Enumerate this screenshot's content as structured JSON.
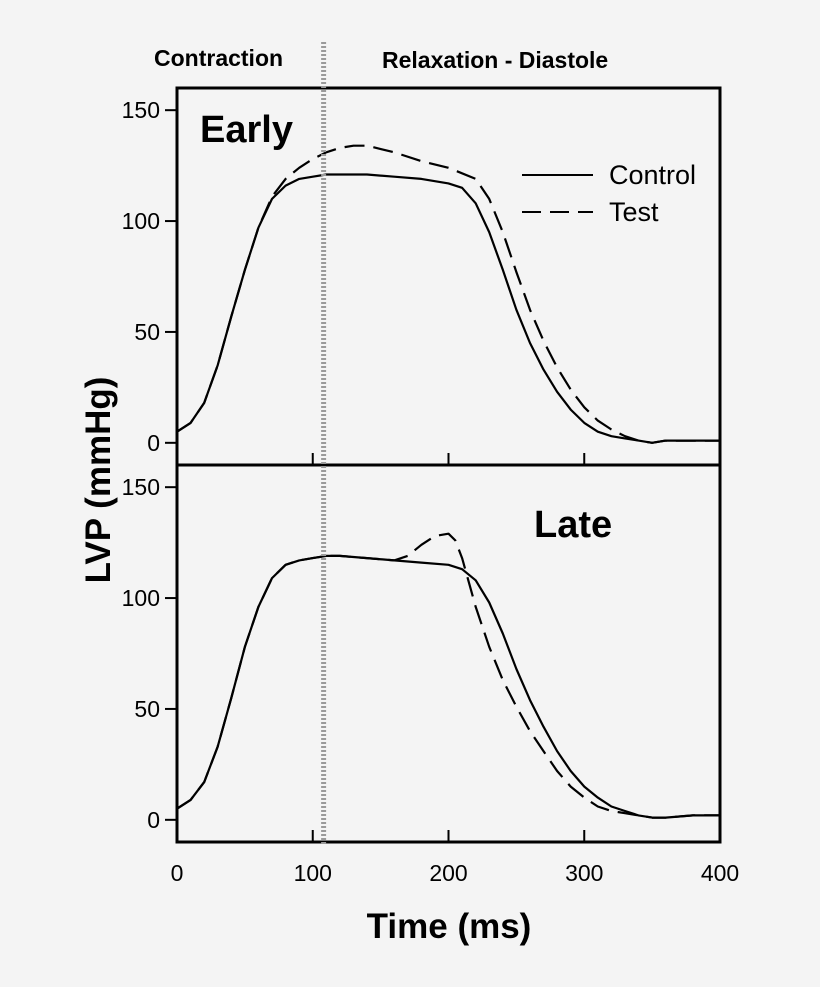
{
  "phases": {
    "left": "Contraction",
    "right": "Relaxation - Diastole"
  },
  "ylabel": "LVP (mmHg)",
  "xlabel": "Time (ms)",
  "divider_time": 108,
  "chart_data": [
    {
      "type": "line",
      "title": "Early",
      "xlim": [
        0,
        400
      ],
      "ylim": [
        -10,
        160
      ],
      "yticks": [
        0,
        50,
        100,
        150
      ],
      "xticks": [
        0,
        100,
        200,
        300,
        400
      ],
      "legend": {
        "position": "top-right"
      },
      "series": [
        {
          "name": "Control",
          "style": "solid",
          "x": [
            0,
            10,
            20,
            30,
            40,
            50,
            60,
            70,
            80,
            90,
            100,
            110,
            120,
            140,
            160,
            180,
            200,
            210,
            220,
            230,
            240,
            250,
            260,
            270,
            280,
            290,
            300,
            310,
            320,
            330,
            340,
            350,
            360,
            380,
            400
          ],
          "y": [
            5,
            9,
            18,
            35,
            57,
            78,
            97,
            110,
            116,
            119,
            120,
            121,
            121,
            121,
            120,
            119,
            117,
            115,
            108,
            95,
            78,
            60,
            45,
            33,
            23,
            15,
            9,
            5,
            3,
            2,
            1,
            0,
            1,
            1,
            1
          ]
        },
        {
          "name": "Test",
          "style": "dashed",
          "x": [
            0,
            10,
            20,
            30,
            40,
            50,
            60,
            70,
            80,
            90,
            100,
            110,
            120,
            130,
            140,
            160,
            180,
            200,
            220,
            230,
            240,
            250,
            260,
            270,
            280,
            290,
            300,
            310,
            320,
            330,
            340,
            350,
            360,
            380,
            400
          ],
          "y": [
            5,
            9,
            18,
            35,
            57,
            78,
            97,
            111,
            119,
            124,
            128,
            131,
            133,
            134,
            134,
            131,
            127,
            124,
            119,
            110,
            95,
            77,
            60,
            46,
            34,
            24,
            16,
            10,
            6,
            3,
            1,
            0,
            1,
            1,
            1
          ]
        }
      ]
    },
    {
      "type": "line",
      "title": "Late",
      "xlim": [
        0,
        400
      ],
      "ylim": [
        -10,
        160
      ],
      "yticks": [
        0,
        50,
        100,
        150
      ],
      "xticks": [
        0,
        100,
        200,
        300,
        400
      ],
      "series": [
        {
          "name": "Control",
          "style": "solid",
          "x": [
            0,
            10,
            20,
            30,
            40,
            50,
            60,
            70,
            80,
            90,
            100,
            110,
            120,
            140,
            160,
            180,
            200,
            210,
            220,
            230,
            240,
            250,
            260,
            270,
            280,
            290,
            300,
            310,
            320,
            330,
            340,
            350,
            360,
            380,
            400
          ],
          "y": [
            5,
            9,
            17,
            33,
            55,
            78,
            96,
            109,
            115,
            117,
            118,
            119,
            119,
            118,
            117,
            116,
            115,
            113,
            108,
            98,
            84,
            68,
            54,
            42,
            31,
            22,
            15,
            10,
            6,
            4,
            2,
            1,
            1,
            2,
            2
          ]
        },
        {
          "name": "Test",
          "style": "dashed",
          "x": [
            0,
            10,
            20,
            30,
            40,
            50,
            60,
            70,
            80,
            90,
            100,
            110,
            120,
            140,
            160,
            170,
            180,
            190,
            200,
            205,
            210,
            220,
            230,
            240,
            250,
            260,
            270,
            280,
            290,
            300,
            310,
            320,
            330,
            340,
            350,
            360,
            380,
            400
          ],
          "y": [
            5,
            9,
            17,
            33,
            55,
            78,
            96,
            109,
            115,
            117,
            118,
            119,
            119,
            118,
            117,
            119,
            124,
            128,
            129,
            126,
            118,
            96,
            78,
            63,
            51,
            40,
            31,
            22,
            15,
            10,
            6,
            4,
            3,
            2,
            1,
            1,
            2,
            2
          ]
        }
      ]
    }
  ]
}
